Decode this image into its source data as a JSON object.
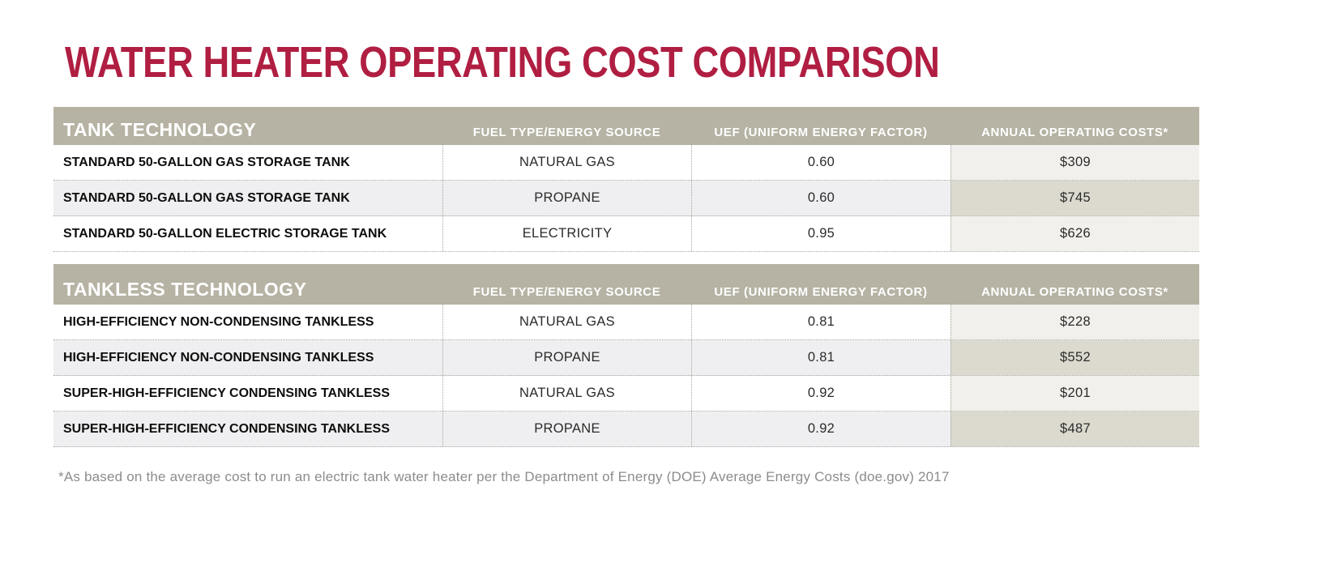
{
  "page": {
    "title": "WATER HEATER OPERATING COST COMPARISON",
    "footnote": "*As based on the average cost to run an electric tank water heater per the Department of Energy (DOE) Average Energy Costs (doe.gov) 2017"
  },
  "colors": {
    "title_red": "#b01e42",
    "header_band": "#b6b3a4",
    "row_alt": "#efeff1",
    "cost_cell_light": "#f1f0ec",
    "cost_cell_dark": "#dcdacf",
    "footnote_gray": "#8c8c8c"
  },
  "tables": [
    {
      "section_label": "TANK TECHNOLOGY",
      "columns": [
        "FUEL TYPE/ENERGY SOURCE",
        "UEF (UNIFORM ENERGY FACTOR)",
        "ANNUAL OPERATING COSTS*"
      ],
      "rows": [
        {
          "technology": "STANDARD 50-GALLON GAS STORAGE TANK",
          "fuel": "NATURAL GAS",
          "uef": "0.60",
          "cost": "$309"
        },
        {
          "technology": "STANDARD 50-GALLON GAS STORAGE TANK",
          "fuel": "PROPANE",
          "uef": "0.60",
          "cost": "$745"
        },
        {
          "technology": "STANDARD 50-GALLON ELECTRIC STORAGE TANK",
          "fuel": "ELECTRICITY",
          "uef": "0.95",
          "cost": "$626"
        }
      ]
    },
    {
      "section_label": "TANKLESS TECHNOLOGY",
      "columns": [
        "FUEL TYPE/ENERGY SOURCE",
        "UEF (UNIFORM ENERGY FACTOR)",
        "ANNUAL OPERATING COSTS*"
      ],
      "rows": [
        {
          "technology": "HIGH-EFFICIENCY NON-CONDENSING TANKLESS",
          "fuel": "NATURAL GAS",
          "uef": "0.81",
          "cost": "$228"
        },
        {
          "technology": "HIGH-EFFICIENCY NON-CONDENSING TANKLESS",
          "fuel": "PROPANE",
          "uef": "0.81",
          "cost": "$552"
        },
        {
          "technology": "SUPER-HIGH-EFFICIENCY CONDENSING TANKLESS",
          "fuel": "NATURAL GAS",
          "uef": "0.92",
          "cost": "$201"
        },
        {
          "technology": "SUPER-HIGH-EFFICIENCY CONDENSING TANKLESS",
          "fuel": "PROPANE",
          "uef": "0.92",
          "cost": "$487"
        }
      ]
    }
  ],
  "chart_data": {
    "type": "table",
    "title": "WATER HEATER OPERATING COST COMPARISON",
    "footnote": "*As based on the average cost to run an electric tank water heater per the Department of Energy (DOE) Average Energy Costs (doe.gov) 2017",
    "sections": [
      {
        "section": "TANK TECHNOLOGY",
        "columns": [
          "TANK TECHNOLOGY",
          "FUEL TYPE/ENERGY SOURCE",
          "UEF (UNIFORM ENERGY FACTOR)",
          "ANNUAL OPERATING COSTS*"
        ],
        "rows": [
          [
            "STANDARD 50-GALLON GAS STORAGE TANK",
            "NATURAL GAS",
            "0.60",
            "$309"
          ],
          [
            "STANDARD 50-GALLON GAS STORAGE TANK",
            "PROPANE",
            "0.60",
            "$745"
          ],
          [
            "STANDARD 50-GALLON ELECTRIC STORAGE TANK",
            "ELECTRICITY",
            "0.95",
            "$626"
          ]
        ],
        "annual_cost_usd": [
          309,
          745,
          626
        ],
        "uef_values": [
          0.6,
          0.6,
          0.95
        ]
      },
      {
        "section": "TANKLESS TECHNOLOGY",
        "columns": [
          "TANKLESS TECHNOLOGY",
          "FUEL TYPE/ENERGY SOURCE",
          "UEF (UNIFORM ENERGY FACTOR)",
          "ANNUAL OPERATING COSTS*"
        ],
        "rows": [
          [
            "HIGH-EFFICIENCY NON-CONDENSING TANKLESS",
            "NATURAL GAS",
            "0.81",
            "$228"
          ],
          [
            "HIGH-EFFICIENCY NON-CONDENSING TANKLESS",
            "PROPANE",
            "0.81",
            "$552"
          ],
          [
            "SUPER-HIGH-EFFICIENCY CONDENSING TANKLESS",
            "NATURAL GAS",
            "0.92",
            "$201"
          ],
          [
            "SUPER-HIGH-EFFICIENCY CONDENSING TANKLESS",
            "PROPANE",
            "0.92",
            "$487"
          ]
        ],
        "annual_cost_usd": [
          228,
          552,
          201,
          487
        ],
        "uef_values": [
          0.81,
          0.81,
          0.92,
          0.92
        ]
      }
    ]
  }
}
